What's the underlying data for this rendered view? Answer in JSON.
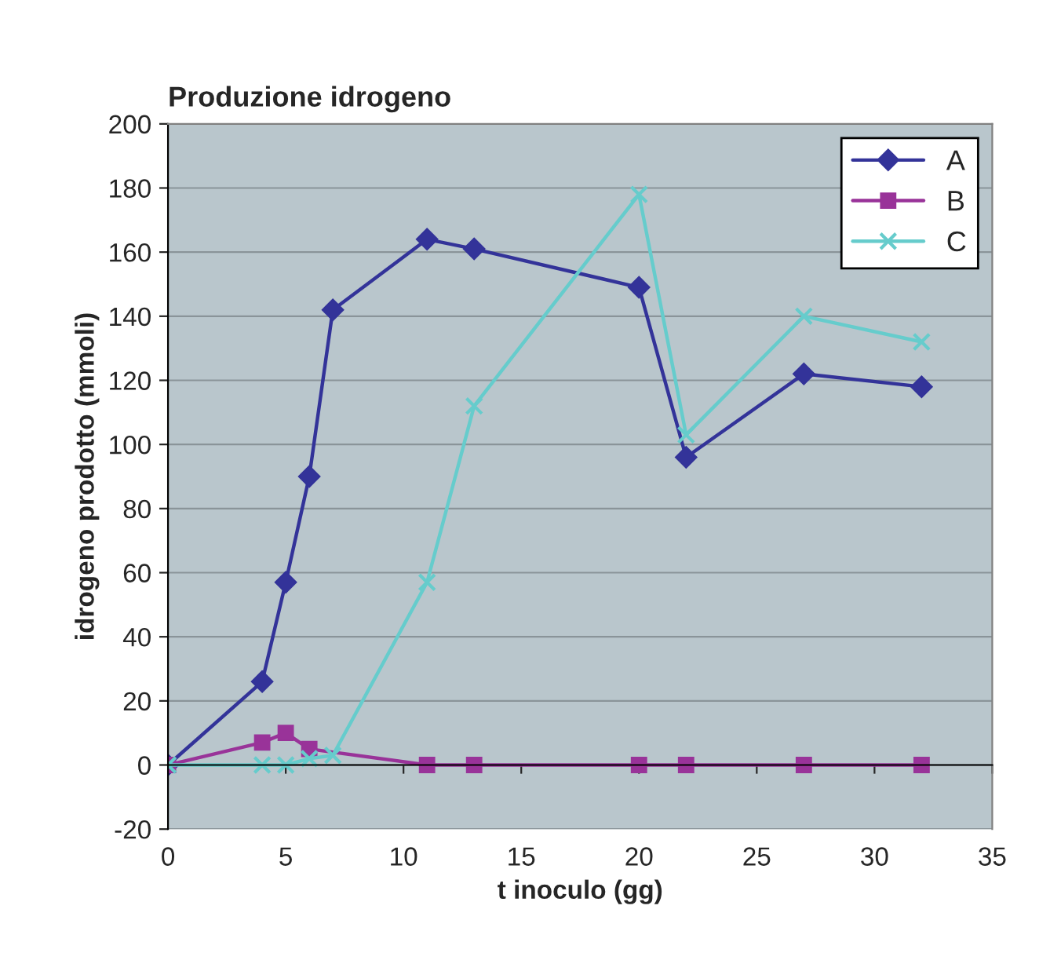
{
  "chart_data": {
    "type": "line",
    "title": "Produzione idrogeno",
    "xlabel": "t inoculo (gg)",
    "ylabel": "idrogeno prodotto (mmoli)",
    "x": [
      0,
      4,
      5,
      6,
      7,
      11,
      13,
      20,
      22,
      27,
      32
    ],
    "series": [
      {
        "name": "A",
        "color": "#333399",
        "marker": "diamond",
        "values": [
          0,
          26,
          57,
          90,
          142,
          164,
          161,
          149,
          96,
          122,
          118
        ]
      },
      {
        "name": "B",
        "color": "#993399",
        "marker": "square",
        "values": [
          0,
          7,
          10,
          5,
          null,
          0,
          0,
          0,
          0,
          0,
          0
        ]
      },
      {
        "name": "C",
        "color": "#66cccc",
        "marker": "cross",
        "values": [
          0,
          0,
          0,
          2,
          3,
          57,
          112,
          178,
          103,
          140,
          132
        ]
      }
    ],
    "xlim": [
      0,
      35
    ],
    "xticks": [
      0,
      5,
      10,
      15,
      20,
      25,
      30,
      35
    ],
    "ylim": [
      -20,
      200
    ],
    "yticks": [
      -20,
      0,
      20,
      40,
      60,
      80,
      100,
      120,
      140,
      160,
      180,
      200
    ],
    "grid": "y",
    "legend": "top right",
    "line_style": "solid"
  }
}
